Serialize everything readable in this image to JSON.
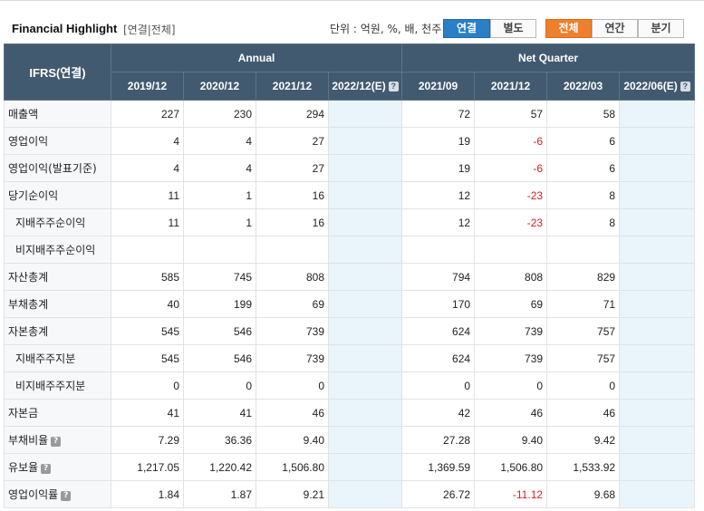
{
  "header": {
    "title": "Financial Highlight",
    "subtitle": "[연결|전체]",
    "unit_label": "단위 : 억원, %, 배, 천주",
    "basis_buttons": [
      "연결",
      "별도"
    ],
    "period_buttons": [
      "전체",
      "연간",
      "분기"
    ]
  },
  "table": {
    "ifrs_label": "IFRS(연결)",
    "group_headers": [
      "Annual",
      "Net Quarter"
    ],
    "columns": [
      "2019/12",
      "2020/12",
      "2021/12",
      "2022/12(E)",
      "2021/09",
      "2021/12",
      "2022/03",
      "2022/06(E)"
    ],
    "rows": [
      {
        "label": "매출액",
        "values": [
          "227",
          "230",
          "294",
          "",
          "72",
          "57",
          "58",
          ""
        ]
      },
      {
        "label": "영업이익",
        "values": [
          "4",
          "4",
          "27",
          "",
          "19",
          "-6",
          "6",
          ""
        ]
      },
      {
        "label": "영업이익(발표기준)",
        "values": [
          "4",
          "4",
          "27",
          "",
          "19",
          "-6",
          "6",
          ""
        ]
      },
      {
        "label": "당기순이익",
        "values": [
          "11",
          "1",
          "16",
          "",
          "12",
          "-23",
          "8",
          ""
        ]
      },
      {
        "label": "지배주주순이익",
        "values": [
          "11",
          "1",
          "16",
          "",
          "12",
          "-23",
          "8",
          ""
        ]
      },
      {
        "label": "비지배주주순이익",
        "values": [
          "",
          "",
          "",
          "",
          "",
          "",
          "",
          ""
        ]
      },
      {
        "label": "자산총계",
        "values": [
          "585",
          "745",
          "808",
          "",
          "794",
          "808",
          "829",
          ""
        ]
      },
      {
        "label": "부채총계",
        "values": [
          "40",
          "199",
          "69",
          "",
          "170",
          "69",
          "71",
          ""
        ]
      },
      {
        "label": "자본총계",
        "values": [
          "545",
          "546",
          "739",
          "",
          "624",
          "739",
          "757",
          ""
        ]
      },
      {
        "label": "지배주주지분",
        "values": [
          "545",
          "546",
          "739",
          "",
          "624",
          "739",
          "757",
          ""
        ]
      },
      {
        "label": "비지배주주지분",
        "values": [
          "0",
          "0",
          "0",
          "",
          "0",
          "0",
          "0",
          ""
        ]
      },
      {
        "label": "자본금",
        "values": [
          "41",
          "41",
          "46",
          "",
          "42",
          "46",
          "46",
          ""
        ]
      },
      {
        "label": "부채비율",
        "values": [
          "7.29",
          "36.36",
          "9.40",
          "",
          "27.28",
          "9.40",
          "9.42",
          ""
        ]
      },
      {
        "label": "유보율",
        "values": [
          "1,217.05",
          "1,220.42",
          "1,506.80",
          "",
          "1,369.59",
          "1,506.80",
          "1,533.92",
          ""
        ]
      },
      {
        "label": "영업이익률",
        "values": [
          "1.84",
          "1.87",
          "9.21",
          "",
          "26.72",
          "-11.12",
          "9.68",
          ""
        ]
      }
    ]
  }
}
